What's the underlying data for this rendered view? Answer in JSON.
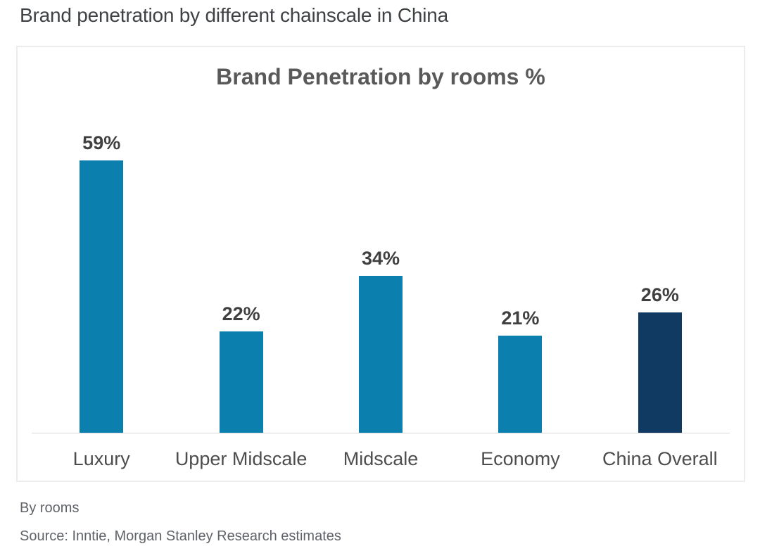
{
  "page": {
    "title": "Brand penetration by different chainscale in China"
  },
  "chart_data": {
    "type": "bar",
    "title": "Brand Penetration by rooms %",
    "categories": [
      "Luxury",
      "Upper Midscale",
      "Midscale",
      "Economy",
      "China Overall"
    ],
    "values": [
      59,
      22,
      34,
      21,
      26
    ],
    "value_labels": [
      "59%",
      "22%",
      "34%",
      "21%",
      "26%"
    ],
    "bar_colors": [
      "#0b7fae",
      "#0b7fae",
      "#0b7fae",
      "#0b7fae",
      "#113a63"
    ],
    "xlabel": "",
    "ylabel": "",
    "ylim": [
      0,
      65
    ],
    "grid": false,
    "legend": "none",
    "value_label_position": "above-bar",
    "y_axis_visible": false
  },
  "footer": {
    "note": "By rooms",
    "source": "Source: Inntie, Morgan Stanley Research estimates"
  },
  "colors": {
    "bar_primary": "#0b7fae",
    "bar_highlight": "#113a63",
    "axis_line": "#d9d9d9",
    "panel_border": "#ececec",
    "title_text": "#3f4245",
    "chart_text": "#595959",
    "label_text": "#404040",
    "footer_text": "#5f6368"
  }
}
